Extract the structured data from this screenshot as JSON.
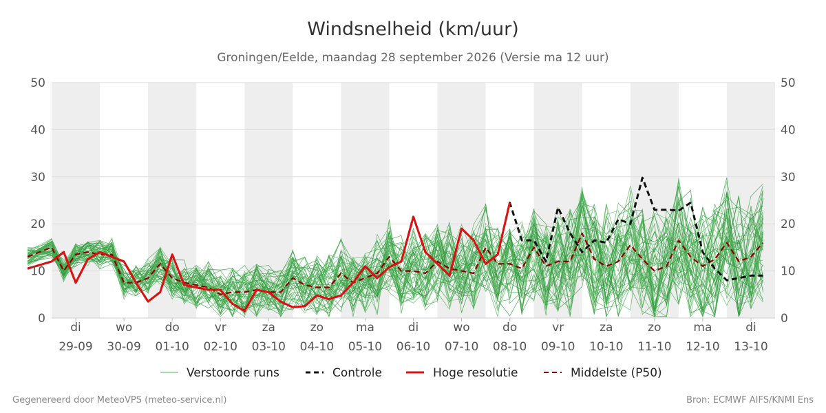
{
  "chart_data": {
    "type": "line",
    "title": "Windsnelheid (km/uur)",
    "subtitle": "Groningen/Eelde, maandag 28 september 2026 (Versie ma 12 uur)",
    "ylim": [
      0,
      50
    ],
    "yticks": [
      0,
      10,
      20,
      30,
      40,
      50
    ],
    "grid": true,
    "x_range": [
      "2026-09-29",
      "2026-10-14"
    ],
    "x_ticks": [
      {
        "day": "di",
        "date": "29-09"
      },
      {
        "day": "wo",
        "date": "30-09"
      },
      {
        "day": "do",
        "date": "01-10"
      },
      {
        "day": "vr",
        "date": "02-10"
      },
      {
        "day": "za",
        "date": "03-10"
      },
      {
        "day": "zo",
        "date": "04-10"
      },
      {
        "day": "ma",
        "date": "05-10"
      },
      {
        "day": "di",
        "date": "06-10"
      },
      {
        "day": "wo",
        "date": "07-10"
      },
      {
        "day": "do",
        "date": "08-10"
      },
      {
        "day": "vr",
        "date": "09-10"
      },
      {
        "day": "za",
        "date": "10-10"
      },
      {
        "day": "zo",
        "date": "11-10"
      },
      {
        "day": "ma",
        "date": "12-10"
      },
      {
        "day": "di",
        "date": "13-10"
      }
    ],
    "shaded_days": [
      "2026-09-29",
      "2026-10-01",
      "2026-10-03",
      "2026-10-05",
      "2026-10-07",
      "2026-10-09",
      "2026-10-11",
      "2026-10-13"
    ],
    "legend_position": "bottom",
    "series": [
      {
        "name": "Controle",
        "color": "#111111",
        "style": "dashed",
        "x": [
          "2026-09-28T12:00",
          "2026-09-29T00:00",
          "2026-09-29T06:00",
          "2026-09-29T12:00",
          "2026-09-29T18:00",
          "2026-09-30T00:00",
          "2026-09-30T06:00",
          "2026-09-30T12:00",
          "2026-09-30T18:00",
          "2026-10-01T00:00",
          "2026-10-01T06:00",
          "2026-10-01T12:00",
          "2026-10-01T18:00",
          "2026-10-02T00:00",
          "2026-10-02T06:00",
          "2026-10-02T12:00",
          "2026-10-02T18:00",
          "2026-10-03T00:00",
          "2026-10-03T06:00",
          "2026-10-03T12:00",
          "2026-10-03T18:00",
          "2026-10-04T00:00",
          "2026-10-04T06:00",
          "2026-10-04T12:00",
          "2026-10-04T18:00",
          "2026-10-05T00:00",
          "2026-10-05T06:00",
          "2026-10-05T12:00",
          "2026-10-05T18:00",
          "2026-10-06T00:00",
          "2026-10-06T06:00",
          "2026-10-06T12:00",
          "2026-10-06T18:00",
          "2026-10-07T00:00",
          "2026-10-07T06:00",
          "2026-10-07T12:00",
          "2026-10-07T18:00",
          "2026-10-08T00:00",
          "2026-10-08T06:00",
          "2026-10-08T12:00",
          "2026-10-08T18:00",
          "2026-10-09T00:00",
          "2026-10-09T06:00",
          "2026-10-09T12:00",
          "2026-10-09T18:00",
          "2026-10-10T00:00",
          "2026-10-10T06:00",
          "2026-10-10T12:00",
          "2026-10-10T18:00",
          "2026-10-11T00:00",
          "2026-10-11T06:00",
          "2026-10-11T12:00",
          "2026-10-11T18:00",
          "2026-10-12T00:00",
          "2026-10-12T06:00",
          "2026-10-12T12:00",
          "2026-10-12T18:00",
          "2026-10-13T00:00",
          "2026-10-13T06:00",
          "2026-10-13T12:00",
          "2026-10-13T18:00"
        ],
        "values": [
          10.5,
          12.0,
          14.0,
          7.5,
          12.5,
          14.0,
          13.0,
          12.0,
          7.5,
          3.5,
          5.5,
          13.5,
          7.0,
          6.5,
          6.0,
          6.0,
          3.0,
          1.5,
          6.0,
          5.5,
          3.5,
          2.3,
          2.5,
          4.8,
          4.0,
          4.8,
          7.5,
          11.0,
          8.5,
          10.8,
          12.0,
          21.5,
          14.0,
          11.5,
          9.0,
          19.0,
          16.5,
          11.5,
          13.5,
          24.5,
          16.5,
          16.5,
          12.0,
          23.5,
          18.0,
          14.0,
          16.5,
          16.0,
          21.0,
          20.0,
          29.8,
          23.0,
          23.0,
          22.8,
          24.5,
          14.0,
          10.5,
          8.0,
          8.5,
          9.0,
          9.0
        ]
      },
      {
        "name": "Hoge resolutie",
        "color": "#dd1111",
        "style": "solid",
        "x": [
          "2026-09-28T12:00",
          "2026-09-29T00:00",
          "2026-09-29T06:00",
          "2026-09-29T12:00",
          "2026-09-29T18:00",
          "2026-09-30T00:00",
          "2026-09-30T06:00",
          "2026-09-30T12:00",
          "2026-09-30T18:00",
          "2026-10-01T00:00",
          "2026-10-01T06:00",
          "2026-10-01T12:00",
          "2026-10-01T18:00",
          "2026-10-02T00:00",
          "2026-10-02T06:00",
          "2026-10-02T12:00",
          "2026-10-02T18:00",
          "2026-10-03T00:00",
          "2026-10-03T06:00",
          "2026-10-03T12:00",
          "2026-10-03T18:00",
          "2026-10-04T00:00",
          "2026-10-04T06:00",
          "2026-10-04T12:00",
          "2026-10-04T18:00",
          "2026-10-05T00:00",
          "2026-10-05T06:00",
          "2026-10-05T12:00",
          "2026-10-05T18:00",
          "2026-10-06T00:00",
          "2026-10-06T06:00",
          "2026-10-06T12:00",
          "2026-10-06T18:00",
          "2026-10-07T00:00",
          "2026-10-07T06:00",
          "2026-10-07T12:00",
          "2026-10-07T18:00",
          "2026-10-08T00:00",
          "2026-10-08T06:00",
          "2026-10-08T12:00"
        ],
        "values": [
          10.5,
          12.0,
          14.0,
          7.5,
          12.5,
          14.0,
          13.0,
          12.0,
          7.5,
          3.5,
          5.5,
          13.5,
          7.0,
          6.5,
          6.0,
          6.0,
          3.0,
          1.5,
          6.0,
          5.5,
          3.5,
          2.3,
          2.5,
          4.8,
          4.0,
          4.8,
          7.5,
          11.0,
          8.5,
          10.8,
          12.0,
          21.5,
          14.0,
          11.5,
          9.0,
          19.0,
          16.5,
          11.5,
          13.5,
          24.5
        ]
      },
      {
        "name": "Middelste (P50)",
        "color": "#8b0000",
        "style": "dashed",
        "x": [
          "2026-09-28T12:00",
          "2026-09-29T00:00",
          "2026-09-29T06:00",
          "2026-09-29T12:00",
          "2026-09-29T18:00",
          "2026-09-30T00:00",
          "2026-09-30T06:00",
          "2026-09-30T12:00",
          "2026-09-30T18:00",
          "2026-10-01T00:00",
          "2026-10-01T06:00",
          "2026-10-01T12:00",
          "2026-10-01T18:00",
          "2026-10-02T00:00",
          "2026-10-02T06:00",
          "2026-10-02T12:00",
          "2026-10-02T18:00",
          "2026-10-03T00:00",
          "2026-10-03T06:00",
          "2026-10-03T12:00",
          "2026-10-03T18:00",
          "2026-10-04T00:00",
          "2026-10-04T06:00",
          "2026-10-04T12:00",
          "2026-10-04T18:00",
          "2026-10-05T00:00",
          "2026-10-05T06:00",
          "2026-10-05T12:00",
          "2026-10-05T18:00",
          "2026-10-06T00:00",
          "2026-10-06T06:00",
          "2026-10-06T12:00",
          "2026-10-06T18:00",
          "2026-10-07T00:00",
          "2026-10-07T06:00",
          "2026-10-07T12:00",
          "2026-10-07T18:00",
          "2026-10-08T00:00",
          "2026-10-08T06:00",
          "2026-10-08T12:00",
          "2026-10-08T18:00",
          "2026-10-09T00:00",
          "2026-10-09T06:00",
          "2026-10-09T12:00",
          "2026-10-09T18:00",
          "2026-10-10T00:00",
          "2026-10-10T06:00",
          "2026-10-10T12:00",
          "2026-10-10T18:00",
          "2026-10-11T00:00",
          "2026-10-11T06:00",
          "2026-10-11T12:00",
          "2026-10-11T18:00",
          "2026-10-12T00:00",
          "2026-10-12T06:00",
          "2026-10-12T12:00",
          "2026-10-12T18:00",
          "2026-10-13T00:00",
          "2026-10-13T06:00",
          "2026-10-13T12:00",
          "2026-10-13T18:00"
        ],
        "values": [
          13.0,
          15.0,
          10.0,
          13.5,
          14.0,
          13.5,
          13.5,
          7.5,
          7.5,
          8.5,
          11.5,
          8.5,
          7.5,
          7.0,
          6.5,
          5.0,
          5.5,
          5.5,
          6.0,
          5.5,
          5.5,
          8.5,
          7.0,
          6.5,
          6.5,
          9.5,
          7.5,
          8.5,
          9.5,
          13.0,
          10.0,
          10.0,
          9.5,
          12.0,
          10.5,
          10.0,
          9.5,
          15.0,
          11.5,
          11.5,
          10.5,
          15.0,
          11.0,
          12.0,
          12.0,
          18.0,
          12.5,
          11.0,
          12.0,
          15.5,
          12.5,
          10.0,
          11.0,
          16.5,
          13.0,
          11.0,
          12.5,
          16.0,
          12.0,
          13.0,
          16.0
        ]
      }
    ]
  },
  "legend": [
    {
      "label": "Verstoorde runs",
      "color": "#4caf50",
      "style": "thin"
    },
    {
      "label": "Controle",
      "color": "#111111",
      "style": "dashed"
    },
    {
      "label": "Hoge resolutie",
      "color": "#dd1111",
      "style": "solid"
    },
    {
      "label": "Middelste (P50)",
      "color": "#8b0000",
      "style": "dashed"
    }
  ],
  "footer": {
    "left": "Gegenereerd door MeteoVPS (meteo-service.nl)",
    "right": "Bron: ECMWF AIFS/KNMI Ens"
  }
}
